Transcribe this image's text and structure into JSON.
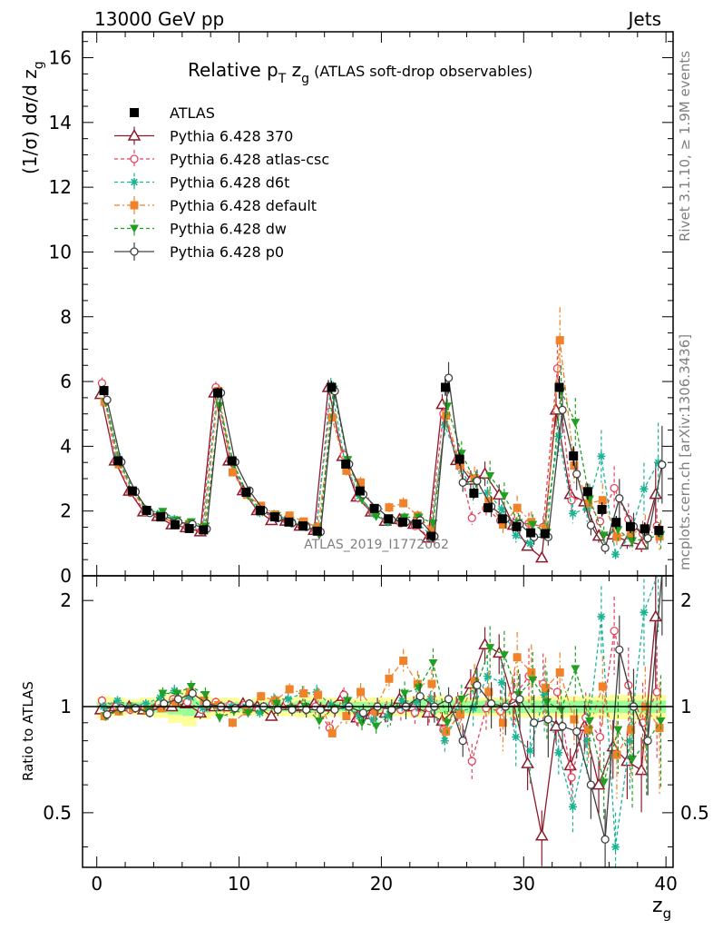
{
  "header": {
    "left": "13000 GeV pp",
    "right": "Jets"
  },
  "side": {
    "rivet": "Rivet 3.1.10, ≥ 1.9M events",
    "mcplots": "mcplots.cern.ch [arXiv:1306.3436]"
  },
  "watermark": "ATLAS_2019_I1772062",
  "chart_data": {
    "type": "scatter",
    "title": {
      "main": "Relative p",
      "sub1": "T",
      "mid": " z",
      "sub2": "g",
      "tail": " (ATLAS soft-drop observables)"
    },
    "ylabel_top": {
      "main": "(1/σ) dσ/d z",
      "sub": "g"
    },
    "ylabel_bottom": "Ratio to ATLAS",
    "xlabel": {
      "main": "z",
      "sub": "g"
    },
    "xlim": [
      -1,
      40.5
    ],
    "ylim_top": [
      0,
      16.8
    ],
    "ylim_bottom": [
      0.35,
      2.35
    ],
    "yscale_bottom": "log",
    "x_ticks": [
      "0",
      "10",
      "20",
      "30",
      "40"
    ],
    "y_ticks_top": [
      "0",
      "2",
      "4",
      "6",
      "8",
      "10",
      "12",
      "14",
      "16"
    ],
    "y_ticks_bottom": [
      "0.5",
      "1",
      "2"
    ],
    "legend_position": "top-left",
    "ref": {
      "name": "ATLAS",
      "values": [
        5.72,
        3.55,
        2.62,
        2.02,
        1.82,
        1.58,
        1.46,
        1.42,
        5.65,
        3.55,
        2.58,
        2.02,
        1.82,
        1.66,
        1.54,
        1.38,
        5.82,
        3.45,
        2.62,
        2.08,
        1.76,
        1.66,
        1.6,
        1.22,
        5.82,
        3.6,
        2.55,
        2.1,
        1.76,
        1.52,
        1.33,
        1.3,
        5.82,
        3.7,
        2.6,
        2.05,
        1.65,
        1.52,
        1.45,
        1.4
      ],
      "errors": [
        0.15,
        0.12,
        0.09,
        0.07,
        0.06,
        0.06,
        0.06,
        0.06,
        0.16,
        0.12,
        0.09,
        0.07,
        0.06,
        0.06,
        0.07,
        0.07,
        0.2,
        0.14,
        0.11,
        0.09,
        0.09,
        0.09,
        0.09,
        0.09,
        0.26,
        0.2,
        0.16,
        0.14,
        0.13,
        0.13,
        0.13,
        0.13,
        0.35,
        0.3,
        0.25,
        0.22,
        0.2,
        0.2,
        0.2,
        0.2
      ],
      "band_sys": [
        0.07,
        0.06,
        0.05,
        0.06,
        0.07,
        0.1,
        0.12,
        0.08,
        0.06,
        0.06,
        0.05,
        0.06,
        0.06,
        0.06,
        0.07,
        0.07,
        0.06,
        0.06,
        0.05,
        0.06,
        0.06,
        0.06,
        0.07,
        0.07,
        0.07,
        0.06,
        0.06,
        0.06,
        0.06,
        0.07,
        0.07,
        0.07,
        0.07,
        0.07,
        0.07,
        0.07,
        0.08,
        0.08,
        0.08,
        0.08
      ],
      "band_stat": [
        0.03,
        0.03,
        0.03,
        0.03,
        0.04,
        0.05,
        0.06,
        0.04,
        0.03,
        0.03,
        0.03,
        0.03,
        0.03,
        0.03,
        0.04,
        0.04,
        0.03,
        0.03,
        0.03,
        0.03,
        0.03,
        0.03,
        0.04,
        0.04,
        0.04,
        0.04,
        0.04,
        0.04,
        0.04,
        0.04,
        0.04,
        0.04,
        0.04,
        0.04,
        0.04,
        0.04,
        0.04,
        0.04,
        0.04,
        0.04
      ]
    },
    "series": [
      {
        "name": "Pythia 6.428 370",
        "color": "#8b1a2b",
        "marker": "triangle-open",
        "linestyle": "solid",
        "ratio": [
          0.98,
          1.0,
          1.0,
          0.98,
          1.01,
          1.0,
          1.02,
          0.96,
          1.0,
          1.0,
          1.02,
          1.0,
          0.94,
          1.02,
          1.0,
          1.02,
          1.0,
          1.07,
          0.93,
          0.95,
          0.96,
          1.05,
          1.0,
          0.96,
          0.91,
          0.99,
          1.16,
          1.5,
          1.42,
          1.03,
          0.69,
          0.43,
          0.88,
          0.68,
          0.88,
          0.6,
          0.77,
          0.7,
          0.66,
          1.8
        ],
        "err": [
          0.02,
          0.02,
          0.02,
          0.03,
          0.03,
          0.03,
          0.03,
          0.04,
          0.02,
          0.03,
          0.03,
          0.03,
          0.03,
          0.04,
          0.04,
          0.04,
          0.04,
          0.04,
          0.05,
          0.05,
          0.06,
          0.07,
          0.07,
          0.08,
          0.06,
          0.08,
          0.1,
          0.12,
          0.13,
          0.15,
          0.16,
          0.18,
          0.1,
          0.12,
          0.15,
          0.17,
          0.19,
          0.22,
          0.24,
          0.38
        ]
      },
      {
        "name": "Pythia 6.428 atlas-csc",
        "color": "#e8425d",
        "marker": "circle-open",
        "linestyle": "dashed",
        "ratio": [
          1.04,
          1.0,
          0.98,
          1.0,
          1.02,
          1.05,
          1.03,
          0.98,
          1.03,
          1.01,
          1.01,
          0.98,
          1.02,
          1.03,
          1.0,
          1.0,
          0.87,
          1.08,
          0.92,
          0.94,
          0.97,
          0.98,
          0.96,
          0.99,
          0.86,
          1.0,
          0.7,
          0.99,
          0.97,
          1.07,
          1.22,
          1.16,
          1.1,
          0.63,
          0.93,
          0.82,
          1.64,
          1.15,
          0.9,
          1.1
        ],
        "err": [
          0.03,
          0.03,
          0.03,
          0.03,
          0.03,
          0.03,
          0.04,
          0.04,
          0.03,
          0.03,
          0.03,
          0.03,
          0.04,
          0.04,
          0.04,
          0.05,
          0.04,
          0.05,
          0.06,
          0.06,
          0.07,
          0.08,
          0.08,
          0.1,
          0.08,
          0.1,
          0.12,
          0.14,
          0.15,
          0.17,
          0.2,
          0.22,
          0.12,
          0.15,
          0.18,
          0.2,
          0.25,
          0.28,
          0.3,
          0.35
        ]
      },
      {
        "name": "Pythia 6.428 d6t",
        "color": "#1ab394",
        "marker": "star",
        "linestyle": "dashed",
        "ratio": [
          1.0,
          1.04,
          1.0,
          1.02,
          1.06,
          1.11,
          1.07,
          0.99,
          1.0,
          1.0,
          1.0,
          0.96,
          1.05,
          1.05,
          1.09,
          1.1,
          1.01,
          1.0,
          0.94,
          0.92,
          0.94,
          1.04,
          1.03,
          1.05,
          0.8,
          0.97,
          0.99,
          1.22,
          1.17,
          0.82,
          0.75,
          1.08,
          0.74,
          0.52,
          0.8,
          1.8,
          0.4,
          0.8,
          1.85,
          2.5
        ],
        "err": [
          0.03,
          0.03,
          0.03,
          0.03,
          0.04,
          0.04,
          0.04,
          0.05,
          0.03,
          0.03,
          0.03,
          0.03,
          0.04,
          0.04,
          0.05,
          0.05,
          0.04,
          0.05,
          0.06,
          0.06,
          0.07,
          0.08,
          0.09,
          0.1,
          0.08,
          0.1,
          0.12,
          0.15,
          0.17,
          0.18,
          0.2,
          0.22,
          0.14,
          0.16,
          0.2,
          0.22,
          0.25,
          0.28,
          0.3,
          0.35
        ]
      },
      {
        "name": "Pythia 6.428 default",
        "color": "#f0822a",
        "marker": "square-filled",
        "linestyle": "dashdot",
        "ratio": [
          0.94,
          0.97,
          0.99,
          0.98,
          0.99,
          1.03,
          1.1,
          1.04,
          1.01,
          0.9,
          0.97,
          1.07,
          1.04,
          1.12,
          1.09,
          1.08,
          0.84,
          0.94,
          1.1,
          0.97,
          1.2,
          1.35,
          1.16,
          1.16,
          0.85,
          0.95,
          1.18,
          1.1,
          0.9,
          1.38,
          1.25,
          1.13,
          1.25,
          0.92,
          0.86,
          1.14,
          0.73,
          0.86,
          1.0,
          0.87
        ],
        "err": [
          0.03,
          0.03,
          0.03,
          0.03,
          0.04,
          0.04,
          0.04,
          0.05,
          0.03,
          0.03,
          0.03,
          0.03,
          0.04,
          0.04,
          0.05,
          0.05,
          0.04,
          0.05,
          0.06,
          0.06,
          0.07,
          0.08,
          0.09,
          0.1,
          0.08,
          0.1,
          0.12,
          0.15,
          0.17,
          0.18,
          0.2,
          0.22,
          0.14,
          0.16,
          0.2,
          0.22,
          0.25,
          0.28,
          0.3,
          0.35
        ]
      },
      {
        "name": "Pythia 6.428 dw",
        "color": "#20a020",
        "marker": "triangle-down-filled",
        "linestyle": "dashed",
        "ratio": [
          0.94,
          0.98,
          0.99,
          0.97,
          1.09,
          1.09,
          1.14,
          1.08,
          0.93,
          0.97,
          0.96,
          0.98,
          1.02,
          0.99,
          1.0,
          0.91,
          0.99,
          1.04,
          0.9,
          0.88,
          0.95,
          1.09,
          1.13,
          1.33,
          0.9,
          1.05,
          1.13,
          1.47,
          1.4,
          1.08,
          1.19,
          1.03,
          0.98,
          1.28,
          0.91,
          0.61,
          0.86,
          0.71,
          0.79,
          0.91
        ],
        "err": [
          0.03,
          0.03,
          0.03,
          0.03,
          0.04,
          0.04,
          0.04,
          0.05,
          0.03,
          0.03,
          0.03,
          0.03,
          0.04,
          0.04,
          0.05,
          0.05,
          0.04,
          0.05,
          0.06,
          0.06,
          0.07,
          0.08,
          0.09,
          0.1,
          0.08,
          0.1,
          0.12,
          0.15,
          0.17,
          0.18,
          0.2,
          0.22,
          0.14,
          0.16,
          0.2,
          0.22,
          0.25,
          0.28,
          0.3,
          0.35
        ]
      },
      {
        "name": "Pythia 6.428 p0",
        "color": "#404040",
        "marker": "circle-open",
        "linestyle": "solid",
        "ratio": [
          0.95,
          0.99,
          0.99,
          0.96,
          1.02,
          1.05,
          1.09,
          1.02,
          1.0,
          0.99,
          1.02,
          1.0,
          0.98,
          0.98,
          0.98,
          0.98,
          0.98,
          1.0,
          0.96,
          1.0,
          0.98,
          1.0,
          1.07,
          1.0,
          1.05,
          0.8,
          1.15,
          1.02,
          1.0,
          1.05,
          0.9,
          0.92,
          0.88,
          0.85,
          0.6,
          0.42,
          1.45,
          1.0,
          0.8,
          2.45
        ],
        "err": [
          0.03,
          0.03,
          0.03,
          0.03,
          0.04,
          0.04,
          0.04,
          0.05,
          0.03,
          0.03,
          0.03,
          0.03,
          0.04,
          0.04,
          0.05,
          0.05,
          0.04,
          0.05,
          0.06,
          0.06,
          0.07,
          0.08,
          0.09,
          0.1,
          0.08,
          0.1,
          0.12,
          0.15,
          0.17,
          0.18,
          0.2,
          0.22,
          0.14,
          0.16,
          0.2,
          0.22,
          0.25,
          0.28,
          0.3,
          0.35
        ]
      }
    ]
  }
}
